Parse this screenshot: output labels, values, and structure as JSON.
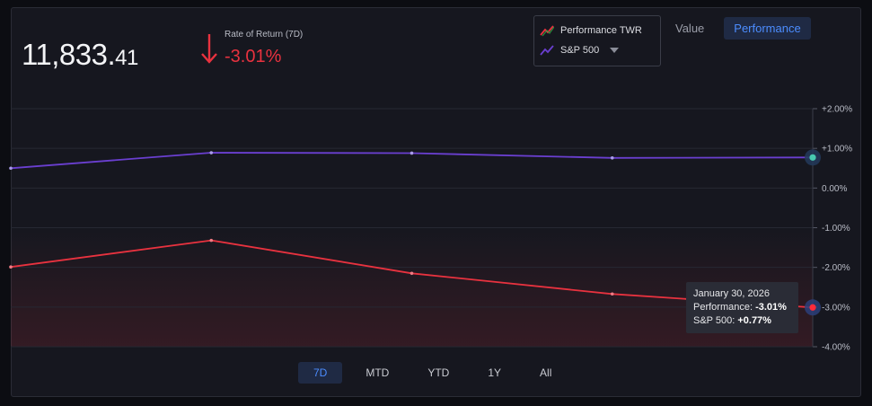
{
  "summary": {
    "value_int": "11,833.",
    "value_dec": "41",
    "ror_label": "Rate of Return (7D)",
    "ror_value": "-3.01%",
    "ror_direction": "down",
    "down_color": "#e8323f"
  },
  "legend": {
    "items": [
      {
        "label": "Performance TWR",
        "icon": "trend-line-icon"
      },
      {
        "label": "S&P 500",
        "icon": "trend-line-icon"
      }
    ]
  },
  "view_toggle": {
    "value_label": "Value",
    "performance_label": "Performance",
    "active": "Performance"
  },
  "tooltip": {
    "date": "January 30, 2026",
    "performance_label": "Performance: ",
    "performance_value": "-3.01%",
    "sp_label": "S&P 500: ",
    "sp_value": "+0.77%"
  },
  "ranges": [
    "7D",
    "MTD",
    "YTD",
    "1Y",
    "All"
  ],
  "active_range": "7D",
  "chart_data": {
    "type": "line",
    "x": [
      0,
      1,
      2,
      3,
      4
    ],
    "ylim": [
      -4,
      2
    ],
    "yticks": [
      "+2.00%",
      "+1.00%",
      "0.00%",
      "-1.00%",
      "-2.00%",
      "-3.00%",
      "-4.00%"
    ],
    "grid": true,
    "series": [
      {
        "name": "Performance TWR",
        "color": "#e8323f",
        "values": [
          -1.99,
          -1.32,
          -2.15,
          -2.67,
          -3.01
        ]
      },
      {
        "name": "S&P 500",
        "color": "#6a3fd0",
        "values": [
          0.5,
          0.89,
          0.88,
          0.76,
          0.77
        ]
      }
    ]
  }
}
